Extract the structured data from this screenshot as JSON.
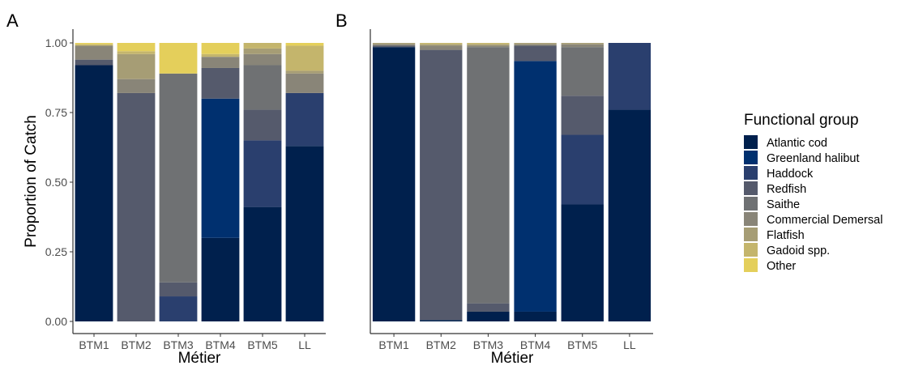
{
  "figure": {
    "panels": [
      "A",
      "B"
    ],
    "ylabel": "Proportion of Catch",
    "xlabel": "Métier"
  },
  "legend": {
    "title": "Functional group"
  },
  "chart_data": [
    {
      "type": "bar",
      "stacked": true,
      "panel": "A",
      "categories": [
        "BTM1",
        "BTM2",
        "BTM3",
        "BTM4",
        "BTM5",
        "LL"
      ],
      "xlabel": "Métier",
      "ylabel": "Proportion of Catch",
      "ylim": [
        0,
        1
      ],
      "yticks": [
        "0.00",
        "0.25",
        "0.50",
        "0.75",
        "1.00"
      ],
      "grid": false,
      "legend_position": "right",
      "series": [
        {
          "name": "Atlantic cod",
          "color": "#00204d",
          "values": [
            0.92,
            0.0,
            0.0,
            0.3,
            0.41,
            0.63
          ]
        },
        {
          "name": "Greenland halibut",
          "color": "#00306f",
          "values": [
            0.0,
            0.0,
            0.0,
            0.5,
            0.0,
            0.0
          ]
        },
        {
          "name": "Haddock",
          "color": "#2a3f6e",
          "values": [
            0.0,
            0.0,
            0.09,
            0.0,
            0.24,
            0.19
          ]
        },
        {
          "name": "Redfish",
          "color": "#555a6c",
          "values": [
            0.02,
            0.82,
            0.05,
            0.11,
            0.11,
            0.0
          ]
        },
        {
          "name": "Saithe",
          "color": "#6f7173",
          "values": [
            0.0,
            0.0,
            0.75,
            0.0,
            0.16,
            0.0
          ]
        },
        {
          "name": "Commercial Demersal",
          "color": "#898578",
          "values": [
            0.05,
            0.05,
            0.0,
            0.04,
            0.04,
            0.07
          ]
        },
        {
          "name": "Flatfish",
          "color": "#a69d75",
          "values": [
            0.0,
            0.09,
            0.0,
            0.0,
            0.02,
            0.01
          ]
        },
        {
          "name": "Gadoid spp.",
          "color": "#c4b56c",
          "values": [
            0.005,
            0.01,
            0.0,
            0.01,
            0.02,
            0.09
          ]
        },
        {
          "name": "Other",
          "color": "#e4cf5b",
          "values": [
            0.005,
            0.03,
            0.11,
            0.04,
            0.0,
            0.01
          ]
        }
      ]
    },
    {
      "type": "bar",
      "stacked": true,
      "panel": "B",
      "categories": [
        "BTM1",
        "BTM2",
        "BTM3",
        "BTM4",
        "BTM5",
        "LL"
      ],
      "xlabel": "Métier",
      "ylabel": "",
      "ylim": [
        0,
        1
      ],
      "grid": false,
      "series": [
        {
          "name": "Atlantic cod",
          "color": "#00204d",
          "values": [
            0.985,
            0.005,
            0.035,
            0.035,
            0.42,
            0.76
          ]
        },
        {
          "name": "Greenland halibut",
          "color": "#00306f",
          "values": [
            0.0,
            0.0,
            0.0,
            0.9,
            0.0,
            0.0
          ]
        },
        {
          "name": "Haddock",
          "color": "#2a3f6e",
          "values": [
            0.0,
            0.0,
            0.0,
            0.0,
            0.25,
            0.24
          ]
        },
        {
          "name": "Redfish",
          "color": "#555a6c",
          "values": [
            0.005,
            0.97,
            0.03,
            0.055,
            0.14,
            0.0
          ]
        },
        {
          "name": "Saithe",
          "color": "#6f7173",
          "values": [
            0.0,
            0.0,
            0.92,
            0.0,
            0.175,
            0.0
          ]
        },
        {
          "name": "Commercial Demersal",
          "color": "#898578",
          "values": [
            0.005,
            0.015,
            0.005,
            0.005,
            0.01,
            0.0
          ]
        },
        {
          "name": "Flatfish",
          "color": "#a69d75",
          "values": [
            0.005,
            0.005,
            0.005,
            0.005,
            0.005,
            0.0
          ]
        },
        {
          "name": "Gadoid spp.",
          "color": "#c4b56c",
          "values": [
            0.0,
            0.005,
            0.005,
            0.0,
            0.0,
            0.0
          ]
        },
        {
          "name": "Other",
          "color": "#e4cf5b",
          "values": [
            0.0,
            0.0,
            0.0,
            0.0,
            0.0,
            0.0
          ]
        }
      ]
    }
  ]
}
